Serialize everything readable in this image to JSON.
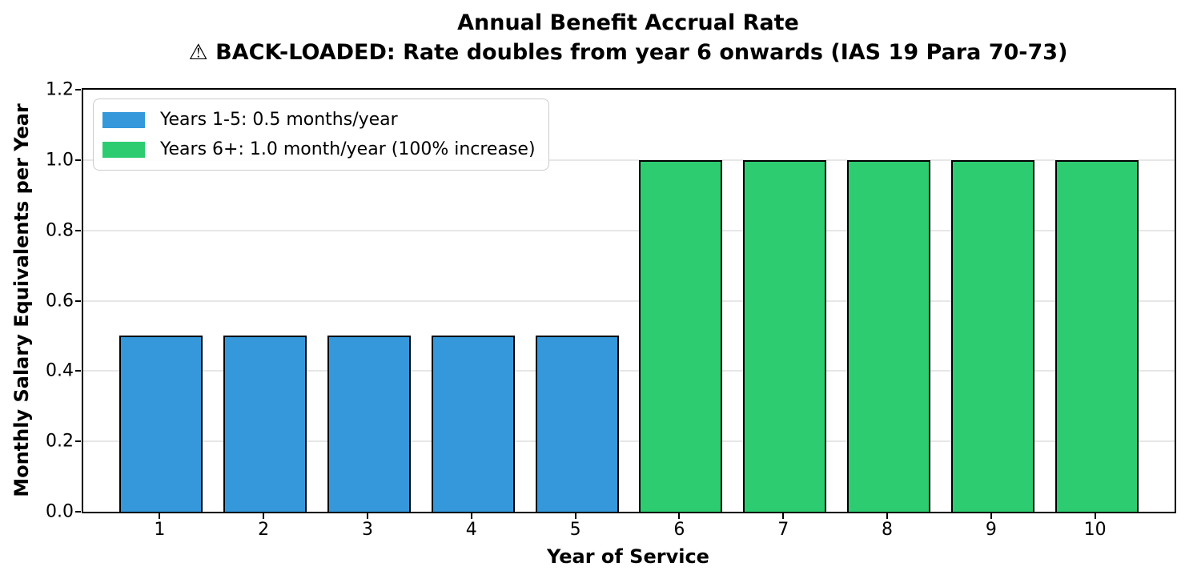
{
  "chart_data": {
    "type": "bar",
    "title": "Annual Benefit Accrual Rate",
    "subtitle": "⚠ BACK-LOADED: Rate doubles from year 6 onwards (IAS 19 Para 70-73)",
    "xlabel": "Year of Service",
    "ylabel": "Monthly Salary Equivalents per Year",
    "categories": [
      "1",
      "2",
      "3",
      "4",
      "5",
      "6",
      "7",
      "8",
      "9",
      "10"
    ],
    "values": [
      0.5,
      0.5,
      0.5,
      0.5,
      0.5,
      1.0,
      1.0,
      1.0,
      1.0,
      1.0
    ],
    "bar_colors": [
      "#3498db",
      "#3498db",
      "#3498db",
      "#3498db",
      "#3498db",
      "#2ecc71",
      "#2ecc71",
      "#2ecc71",
      "#2ecc71",
      "#2ecc71"
    ],
    "bar_edge_color": "#000000",
    "bar_width_fraction": 0.8,
    "ylim": [
      0.0,
      1.2
    ],
    "ytick_labels": [
      "0.0",
      "0.2",
      "0.4",
      "0.6",
      "0.8",
      "1.0",
      "1.2"
    ],
    "grid": {
      "horizontal": true,
      "color": "#e7e7e7"
    },
    "legend": {
      "position": "upper-left",
      "entries": [
        {
          "label": "Years 1-5: 0.5 months/year",
          "color": "#3498db"
        },
        {
          "label": "Years 6+: 1.0 month/year (100% increase)",
          "color": "#2ecc71"
        }
      ]
    }
  }
}
